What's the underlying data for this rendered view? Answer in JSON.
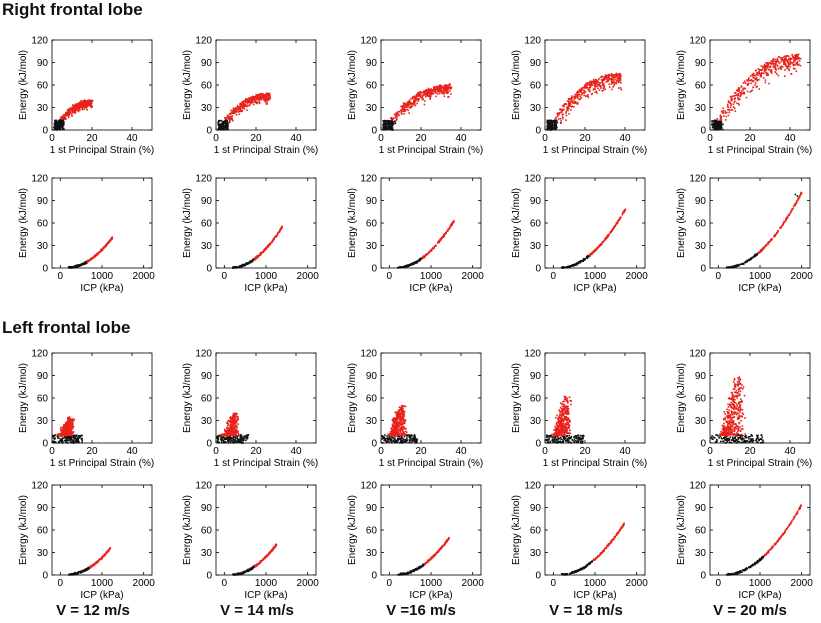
{
  "sections": {
    "right": "Right frontal lobe",
    "left": "Left frontal lobe"
  },
  "velocity_labels": [
    "V = 12 m/s",
    "V = 14 m/s",
    "V =16 m/s",
    "V = 18 m/s",
    "V = 20 m/s"
  ],
  "colors": {
    "high": "#e8231c",
    "low": "#111111",
    "axis": "#000000"
  },
  "chart_data": {
    "type": "scatter",
    "layout": "4 rows x 5 columns of small scatter panels",
    "rows": [
      {
        "section": "Right frontal lobe",
        "kind": "strain",
        "xlabel": "1 st Principal Strain (%)",
        "ylabel": "Energy (kJ/mol)",
        "xlim": [
          0,
          50
        ],
        "ylim": [
          0,
          120
        ],
        "xticks": [
          0,
          20,
          40
        ],
        "yticks": [
          0,
          30,
          60,
          90,
          120
        ],
        "panels": [
          {
            "velocity": "V = 12 m/s",
            "x_max": 20,
            "y_max": 40
          },
          {
            "velocity": "V = 14 m/s",
            "x_max": 27,
            "y_max": 50
          },
          {
            "velocity": "V =16 m/s",
            "x_max": 35,
            "y_max": 62
          },
          {
            "velocity": "V = 18 m/s",
            "x_max": 38,
            "y_max": 77
          },
          {
            "velocity": "V = 20 m/s",
            "x_max": 45,
            "y_max": 105
          }
        ]
      },
      {
        "section": "Right frontal lobe",
        "kind": "icp",
        "xlabel": "ICP (kPa)",
        "ylabel": "Energy (kJ/mol)",
        "xlim": [
          -200,
          2200
        ],
        "ylim": [
          0,
          120
        ],
        "xticks": [
          0,
          1000,
          2000
        ],
        "yticks": [
          0,
          30,
          60,
          90,
          120
        ],
        "panels": [
          {
            "velocity": "V = 12 m/s",
            "x_max": 1250,
            "y_max": 40
          },
          {
            "velocity": "V = 14 m/s",
            "x_max": 1400,
            "y_max": 55
          },
          {
            "velocity": "V =16 m/s",
            "x_max": 1550,
            "y_max": 62
          },
          {
            "velocity": "V = 18 m/s",
            "x_max": 1750,
            "y_max": 80
          },
          {
            "velocity": "V = 20 m/s",
            "x_max": 2000,
            "y_max": 100
          }
        ]
      },
      {
        "section": "Left frontal lobe",
        "kind": "strain",
        "xlabel": "1 st Principal Strain (%)",
        "ylabel": "Energy (kJ/mol)",
        "xlim": [
          0,
          50
        ],
        "ylim": [
          0,
          120
        ],
        "xticks": [
          0,
          20,
          40
        ],
        "yticks": [
          0,
          30,
          60,
          90,
          120
        ],
        "panels": [
          {
            "velocity": "V = 12 m/s",
            "x_max": 14,
            "y_max": 35
          },
          {
            "velocity": "V = 14 m/s",
            "x_max": 15,
            "y_max": 40
          },
          {
            "velocity": "V =16 m/s",
            "x_max": 17,
            "y_max": 50
          },
          {
            "velocity": "V = 18 m/s",
            "x_max": 18,
            "y_max": 63
          },
          {
            "velocity": "V = 20 m/s",
            "x_max": 25,
            "y_max": 88
          }
        ]
      },
      {
        "section": "Left frontal lobe",
        "kind": "icp",
        "xlabel": "ICP (kPa)",
        "ylabel": "Energy (kJ/mol)",
        "xlim": [
          -200,
          2200
        ],
        "ylim": [
          0,
          120
        ],
        "xticks": [
          0,
          1000,
          2000
        ],
        "yticks": [
          0,
          30,
          60,
          90,
          120
        ],
        "panels": [
          {
            "velocity": "V = 12 m/s",
            "x_max": 1200,
            "y_max": 35
          },
          {
            "velocity": "V = 14 m/s",
            "x_max": 1250,
            "y_max": 40
          },
          {
            "velocity": "V =16 m/s",
            "x_max": 1450,
            "y_max": 50
          },
          {
            "velocity": "V = 18 m/s",
            "x_max": 1700,
            "y_max": 68
          },
          {
            "velocity": "V = 20 m/s",
            "x_max": 2000,
            "y_max": 93
          }
        ]
      }
    ]
  }
}
